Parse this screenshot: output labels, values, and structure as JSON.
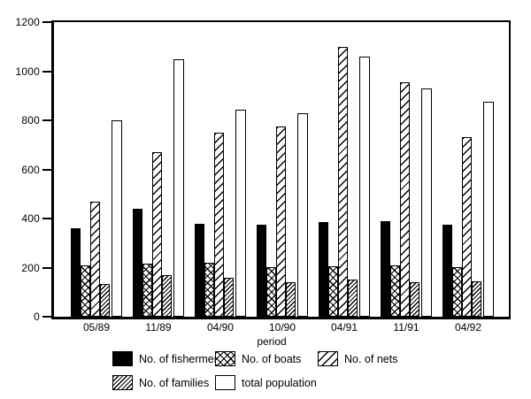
{
  "chart_data": {
    "type": "bar",
    "title": "",
    "xlabel": "period",
    "ylabel": "",
    "ylim": [
      0,
      1200
    ],
    "ytick_step": 200,
    "grid": false,
    "legend_position": "bottom",
    "categories": [
      "05/89",
      "11/89",
      "04/90",
      "10/90",
      "04/91",
      "11/91",
      "04/92"
    ],
    "series": [
      {
        "name": "No. of fishermen",
        "pattern": "solid-black",
        "values": [
          360,
          440,
          380,
          375,
          385,
          390,
          375
        ]
      },
      {
        "name": "No. of boats",
        "pattern": "crosshatch",
        "values": [
          210,
          215,
          220,
          200,
          205,
          210,
          200
        ]
      },
      {
        "name": "No. of nets",
        "pattern": "diagonal-sparse",
        "values": [
          470,
          670,
          750,
          775,
          1100,
          955,
          730
        ]
      },
      {
        "name": "No. of families",
        "pattern": "diagonal-dense",
        "values": [
          135,
          170,
          160,
          140,
          150,
          140,
          145
        ]
      },
      {
        "name": "total population",
        "pattern": "white",
        "values": [
          800,
          1050,
          845,
          830,
          1060,
          930,
          875
        ]
      }
    ],
    "legend_rows": [
      [
        0,
        1,
        2
      ],
      [
        3,
        4
      ]
    ]
  },
  "colors": {
    "ink": "#000000",
    "paper": "#ffffff"
  }
}
